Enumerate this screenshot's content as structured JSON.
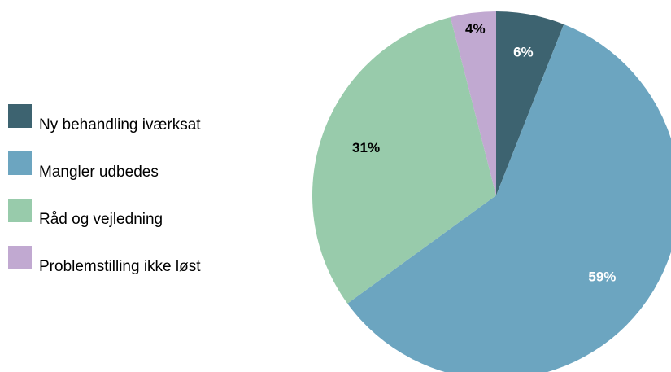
{
  "chart_data": {
    "type": "pie",
    "title": "",
    "slices": [
      {
        "label": "Ny behandling iværksat",
        "value": 6,
        "display": "6%",
        "color": "#3d6370",
        "label_color": "#ffffff"
      },
      {
        "label": "Mangler udbedes",
        "value": 59,
        "display": "59%",
        "color": "#6ca5c0",
        "label_color": "#ffffff"
      },
      {
        "label": "Råd og vejledning",
        "value": 31,
        "display": "31%",
        "color": "#98cbab",
        "label_color": "#000000"
      },
      {
        "label": "Problemstilling ikke løst",
        "value": 4,
        "display": "4%",
        "color": "#c1a9d1",
        "label_color": "#000000"
      }
    ],
    "legend_position": "left",
    "start_angle": "12 o'clock",
    "direction": "clockwise"
  }
}
